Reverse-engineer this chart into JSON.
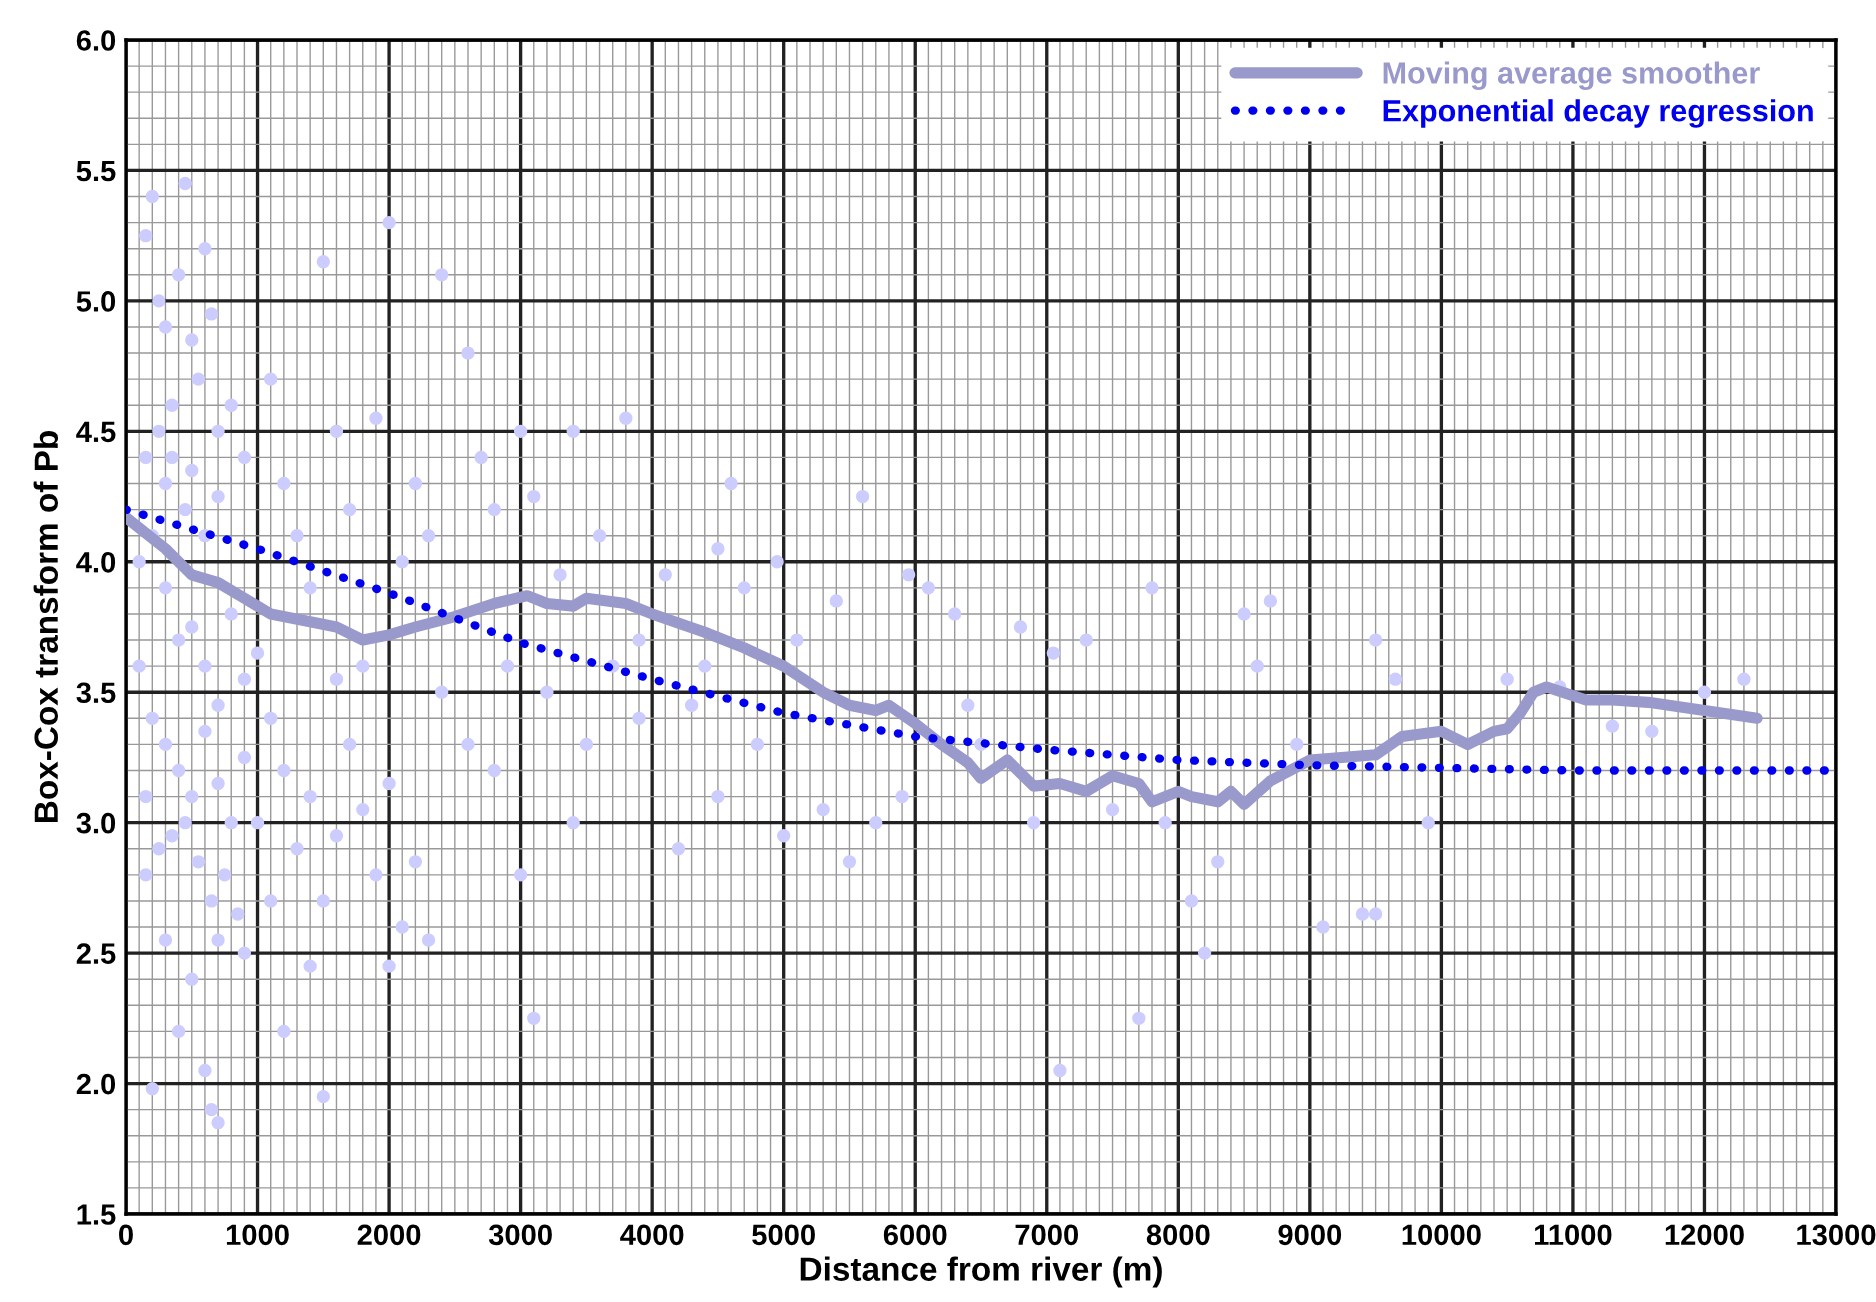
{
  "chart_data": {
    "type": "scatter",
    "xlabel": "Distance from river (m)",
    "ylabel": "Box-Cox transform of Pb",
    "xlim": [
      0,
      13000
    ],
    "xticks": [
      0,
      1000,
      2000,
      3000,
      4000,
      5000,
      6000,
      7000,
      8000,
      9000,
      10000,
      11000,
      12000,
      13000
    ],
    "ylim": [
      1.5,
      6.0
    ],
    "yticks": [
      {
        "value": 1.5,
        "label": "1.5"
      },
      {
        "value": 2.0,
        "label": "2.0"
      },
      {
        "value": 2.5,
        "label": "2.5"
      },
      {
        "value": 3.0,
        "label": "3.0"
      },
      {
        "value": 3.5,
        "label": "3.5"
      },
      {
        "value": 4.0,
        "label": "4.0"
      },
      {
        "value": 4.5,
        "label": "4.5"
      },
      {
        "value": 5.0,
        "label": "5.0"
      },
      {
        "value": 5.5,
        "label": "5.5"
      },
      {
        "value": 6.0,
        "label": "6.0"
      }
    ],
    "grid": true,
    "legend": "top right",
    "series": [
      {
        "color": "#ccccff",
        "marker": "circle",
        "x": [
          150,
          200,
          250,
          300,
          350,
          400,
          450,
          500,
          550,
          600,
          650,
          700,
          250,
          300,
          350,
          450,
          500,
          600,
          700,
          800,
          900,
          200,
          300,
          400,
          500,
          600,
          700,
          800,
          900,
          1000,
          200,
          300,
          400,
          500,
          600,
          700,
          800,
          900,
          250,
          350,
          450,
          550,
          650,
          750,
          850,
          150,
          300,
          500,
          700,
          900,
          400,
          600,
          200,
          700,
          650,
          100,
          100,
          150,
          150,
          1000,
          1100,
          1200,
          1300,
          1400,
          1500,
          1600,
          1700,
          1800,
          1900,
          2000,
          2100,
          2200,
          2300,
          2400,
          1100,
          1200,
          1300,
          1400,
          1500,
          1600,
          1700,
          1800,
          1900,
          2000,
          2100,
          2200,
          2300,
          1200,
          1500,
          1400,
          1100,
          1600,
          2400,
          2000,
          2600,
          2700,
          2800,
          2900,
          3000,
          3100,
          3200,
          3300,
          3400,
          3500,
          3600,
          3800,
          3900,
          3000,
          2600,
          3100,
          3400,
          3700,
          2800,
          3900,
          4100,
          4300,
          4500,
          4600,
          4700,
          4800,
          4950,
          5100,
          5300,
          5400,
          5600,
          5700,
          5900,
          5950,
          4200,
          4500,
          5000,
          5500,
          4400,
          6100,
          6300,
          6400,
          6500,
          6800,
          6900,
          7050,
          7100,
          7300,
          7500,
          7700,
          7800,
          7900,
          8100,
          8200,
          8300,
          8500,
          8600,
          8700,
          8900,
          9100,
          9400,
          9500,
          9500,
          9650,
          9900,
          10500,
          10900,
          11300,
          11600,
          12000,
          12300
        ],
        "values": [
          5.25,
          5.4,
          5.0,
          4.9,
          4.6,
          5.1,
          5.45,
          4.85,
          4.7,
          5.2,
          4.95,
          4.5,
          4.5,
          4.3,
          4.4,
          4.2,
          4.35,
          4.1,
          4.25,
          4.6,
          4.4,
          4.1,
          3.9,
          3.7,
          3.75,
          3.6,
          3.45,
          3.8,
          3.55,
          3.65,
          3.4,
          3.3,
          3.2,
          3.1,
          3.35,
          3.15,
          3.0,
          3.25,
          2.9,
          2.95,
          3.0,
          2.85,
          2.7,
          2.8,
          2.65,
          2.8,
          2.55,
          2.4,
          2.55,
          2.5,
          2.2,
          2.05,
          1.98,
          1.85,
          1.9,
          3.6,
          4.0,
          4.4,
          3.1,
          3.0,
          4.7,
          4.3,
          4.1,
          3.9,
          5.15,
          4.5,
          4.2,
          3.6,
          4.55,
          5.3,
          4.0,
          4.3,
          4.1,
          5.1,
          3.4,
          3.2,
          2.9,
          3.1,
          2.7,
          2.95,
          3.3,
          3.05,
          2.8,
          3.15,
          2.6,
          2.85,
          2.55,
          2.2,
          1.95,
          2.45,
          2.7,
          3.55,
          3.5,
          2.45,
          4.8,
          4.4,
          4.2,
          3.6,
          4.5,
          4.25,
          3.5,
          3.95,
          4.5,
          3.3,
          4.1,
          4.55,
          3.7,
          2.8,
          3.3,
          2.25,
          3.0,
          3.6,
          3.2,
          3.4,
          3.95,
          3.45,
          4.05,
          4.3,
          3.9,
          3.3,
          4.0,
          3.7,
          3.05,
          3.85,
          4.25,
          3.0,
          3.1,
          3.95,
          2.9,
          3.1,
          2.95,
          2.85,
          3.6,
          3.9,
          3.8,
          3.45,
          3.3,
          3.75,
          3.0,
          3.65,
          2.05,
          3.7,
          3.05,
          2.25,
          3.9,
          3.0,
          2.7,
          2.5,
          2.85,
          3.8,
          3.6,
          3.85,
          3.3,
          2.6,
          2.65,
          2.65,
          3.7,
          3.55,
          3.0,
          3.55,
          3.52,
          3.37,
          3.35,
          3.5,
          3.55
        ]
      },
      {
        "type": "line",
        "name": "Moving average smoother",
        "color": "#9999cc",
        "line_style": "solid",
        "x": [
          0,
          100,
          300,
          500,
          700,
          900,
          1100,
          1400,
          1600,
          1800,
          2000,
          2200,
          2500,
          2800,
          3050,
          3200,
          3400,
          3500,
          3800,
          4000,
          4400,
          4700,
          5000,
          5300,
          5500,
          5700,
          5800,
          6000,
          6200,
          6400,
          6500,
          6700,
          6900,
          7100,
          7300,
          7500,
          7700,
          7800,
          8000,
          8100,
          8300,
          8400,
          8500,
          8700,
          9000,
          9500,
          9700,
          10000,
          10200,
          10400,
          10500,
          10600,
          10700,
          10800,
          11100,
          11300,
          11600,
          12000,
          12400
        ],
        "values": [
          4.17,
          4.13,
          4.05,
          3.95,
          3.92,
          3.86,
          3.8,
          3.77,
          3.75,
          3.7,
          3.72,
          3.75,
          3.79,
          3.84,
          3.87,
          3.84,
          3.83,
          3.86,
          3.84,
          3.8,
          3.73,
          3.67,
          3.6,
          3.5,
          3.45,
          3.43,
          3.45,
          3.38,
          3.3,
          3.23,
          3.17,
          3.24,
          3.14,
          3.15,
          3.12,
          3.18,
          3.15,
          3.08,
          3.12,
          3.1,
          3.08,
          3.12,
          3.07,
          3.16,
          3.24,
          3.26,
          3.33,
          3.35,
          3.3,
          3.35,
          3.36,
          3.42,
          3.5,
          3.52,
          3.47,
          3.47,
          3.46,
          3.43,
          3.4
        ]
      },
      {
        "type": "line",
        "name": "Exponential decay regression",
        "color": "#0000ee",
        "line_style": "dotted",
        "x": [
          0,
          1000,
          2000,
          3000,
          4000,
          5000,
          6000,
          7000,
          8000,
          9000,
          10000,
          11000,
          12000,
          13000
        ],
        "values": [
          4.2,
          4.05,
          3.88,
          3.69,
          3.55,
          3.42,
          3.33,
          3.28,
          3.24,
          3.22,
          3.21,
          3.2,
          3.2,
          3.2
        ]
      }
    ]
  }
}
